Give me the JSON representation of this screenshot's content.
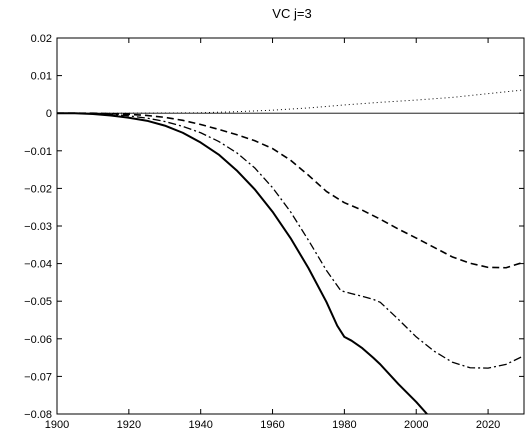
{
  "chart_data": {
    "type": "line",
    "title": "VC j=3",
    "xlabel": "",
    "ylabel": "",
    "xlim": [
      1900,
      2030
    ],
    "ylim": [
      -0.08,
      0.02
    ],
    "grid": false,
    "xticks": [
      1900,
      1920,
      1940,
      1960,
      1980,
      2000,
      2020
    ],
    "xtick_labels": [
      "1900",
      "1920",
      "1940",
      "1960",
      "1980",
      "2000",
      "2020"
    ],
    "yticks": [
      0.02,
      0.01,
      0,
      -0.01,
      -0.02,
      -0.03,
      -0.04,
      -0.05,
      -0.06,
      -0.07,
      -0.08
    ],
    "ytick_labels": [
      "0.02",
      "0.01",
      "0",
      "−0.01",
      "−0.02",
      "−0.03",
      "−0.04",
      "−0.05",
      "−0.06",
      "−0.07",
      "−0.08"
    ],
    "reference_line": {
      "y": 0
    },
    "series": [
      {
        "style": "solid",
        "x": [
          1900,
          1905,
          1910,
          1915,
          1920,
          1925,
          1930,
          1935,
          1940,
          1945,
          1950,
          1955,
          1960,
          1965,
          1970,
          1975,
          1978,
          1980,
          1982,
          1985,
          1988,
          1990,
          1995,
          2000,
          2003
        ],
        "y": [
          0,
          0,
          -0.0002,
          -0.0006,
          -0.0012,
          -0.002,
          -0.0033,
          -0.0052,
          -0.0078,
          -0.011,
          -0.0152,
          -0.0202,
          -0.0262,
          -0.0332,
          -0.0412,
          -0.0502,
          -0.0565,
          -0.0595,
          -0.0605,
          -0.0625,
          -0.065,
          -0.0668,
          -0.072,
          -0.0768,
          -0.08
        ]
      },
      {
        "style": "dash-dot",
        "x": [
          1900,
          1905,
          1910,
          1915,
          1920,
          1925,
          1930,
          1935,
          1940,
          1945,
          1950,
          1955,
          1960,
          1965,
          1970,
          1975,
          1979,
          1982,
          1985,
          1988,
          1990,
          1995,
          2000,
          2005,
          2010,
          2015,
          2020,
          2025,
          2030
        ],
        "y": [
          0,
          0,
          -0.0001,
          -0.0003,
          -0.0007,
          -0.0013,
          -0.0022,
          -0.0035,
          -0.0052,
          -0.0075,
          -0.0105,
          -0.0145,
          -0.0198,
          -0.0262,
          -0.0338,
          -0.0418,
          -0.0472,
          -0.048,
          -0.0487,
          -0.0495,
          -0.0503,
          -0.0548,
          -0.0595,
          -0.0633,
          -0.0662,
          -0.0677,
          -0.0678,
          -0.0668,
          -0.0645
        ]
      },
      {
        "style": "dashed",
        "x": [
          1900,
          1910,
          1920,
          1925,
          1930,
          1935,
          1940,
          1945,
          1950,
          1955,
          1960,
          1965,
          1970,
          1975,
          1980,
          1985,
          1990,
          1995,
          2000,
          2005,
          2010,
          2015,
          2020,
          2025,
          2030
        ],
        "y": [
          0,
          0,
          -0.0003,
          -0.0006,
          -0.0011,
          -0.0019,
          -0.003,
          -0.0043,
          -0.0057,
          -0.0073,
          -0.0094,
          -0.0125,
          -0.0165,
          -0.0208,
          -0.0238,
          -0.0258,
          -0.0282,
          -0.0308,
          -0.0332,
          -0.0357,
          -0.0382,
          -0.0399,
          -0.041,
          -0.0411,
          -0.0396
        ]
      },
      {
        "style": "dotted",
        "x": [
          1900,
          1920,
          1940,
          1950,
          1960,
          1970,
          1980,
          1990,
          2000,
          2010,
          2020,
          2030
        ],
        "y": [
          0,
          0,
          0.0001,
          0.0004,
          0.0008,
          0.0014,
          0.0022,
          0.0029,
          0.0035,
          0.0042,
          0.0052,
          0.0062
        ]
      }
    ]
  }
}
